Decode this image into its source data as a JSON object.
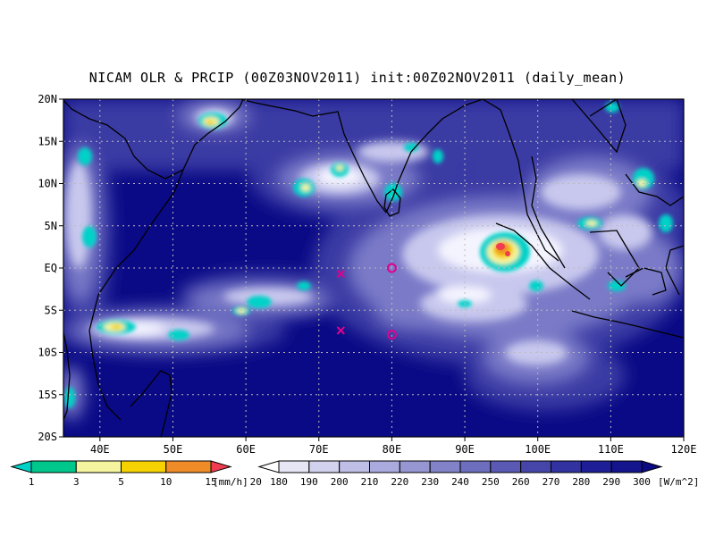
{
  "title": "NICAM OLR & PRCIP (00Z03NOV2011) init:00Z02NOV2011 (daily_mean)",
  "map": {
    "lon_range": [
      35,
      120
    ],
    "lat_range": [
      -20,
      20
    ],
    "lat_ticks": [
      {
        "v": 20,
        "label": "20N"
      },
      {
        "v": 15,
        "label": "15N"
      },
      {
        "v": 10,
        "label": "10N"
      },
      {
        "v": 5,
        "label": "5N"
      },
      {
        "v": 0,
        "label": "EQ"
      },
      {
        "v": -5,
        "label": "5S"
      },
      {
        "v": -10,
        "label": "10S"
      },
      {
        "v": -15,
        "label": "15S"
      },
      {
        "v": -20,
        "label": "20S"
      }
    ],
    "lon_ticks": [
      {
        "v": 40,
        "label": "40E"
      },
      {
        "v": 50,
        "label": "50E"
      },
      {
        "v": 60,
        "label": "60E"
      },
      {
        "v": 70,
        "label": "70E"
      },
      {
        "v": 80,
        "label": "80E"
      },
      {
        "v": 90,
        "label": "90E"
      },
      {
        "v": 100,
        "label": "100E"
      },
      {
        "v": 110,
        "label": "110E"
      },
      {
        "v": 120,
        "label": "120E"
      }
    ],
    "gridlines": "dotted"
  },
  "markers": [
    {
      "type": "cross",
      "lon": 73,
      "lat": -0.7,
      "color": "#e0008c"
    },
    {
      "type": "cross",
      "lon": 73,
      "lat": -7.4,
      "color": "#e0008c"
    },
    {
      "type": "circle",
      "lon": 80,
      "lat": 0,
      "color": "#e0008c"
    },
    {
      "type": "circle",
      "lon": 80,
      "lat": -7.9,
      "color": "#e0008c"
    }
  ],
  "precip_colorbar": {
    "labels": [
      "1",
      "3",
      "5",
      "10",
      "15",
      "20"
    ],
    "unit": "[mm/h]",
    "colors": [
      "#00d2c8",
      "#00c88c",
      "#f5f5a0",
      "#f5d200",
      "#f08c28",
      "#f03c50"
    ]
  },
  "olr_colorbar": {
    "labels": [
      "180",
      "190",
      "200",
      "210",
      "220",
      "230",
      "240",
      "250",
      "260",
      "270",
      "280",
      "290",
      "300"
    ],
    "unit": "[W/m^2]",
    "colors": [
      "#ffffff",
      "#e6e6f5",
      "#d2d2ee",
      "#bebee6",
      "#aaaade",
      "#9696d2",
      "#8282c8",
      "#6e6ebe",
      "#5a5ab4",
      "#4646aa",
      "#3232a0",
      "#1e1e96",
      "#14148c",
      "#0a0a82"
    ]
  }
}
